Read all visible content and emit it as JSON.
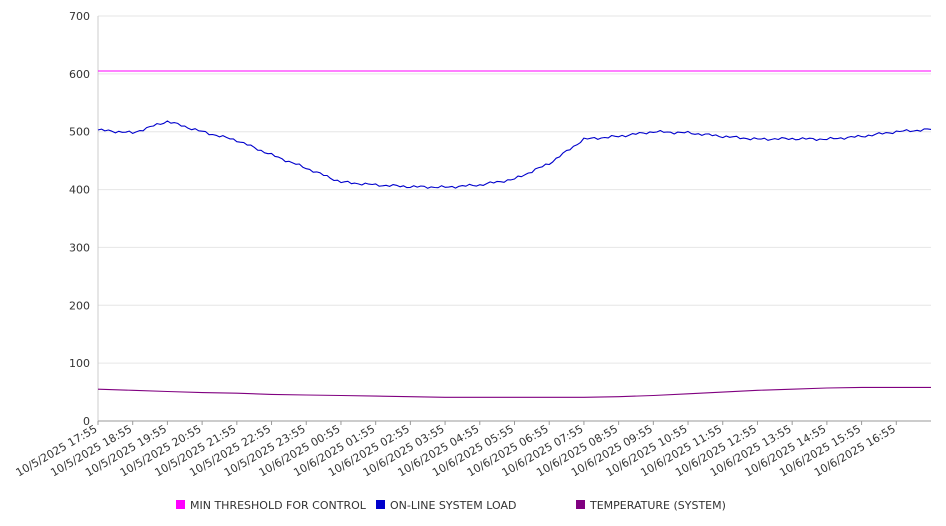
{
  "chart_data": {
    "type": "line",
    "ylim": [
      0,
      700
    ],
    "yticks": [
      0,
      100,
      200,
      300,
      400,
      500,
      600,
      700
    ],
    "x_tick_labels": [
      "10/5/2025 17:55",
      "10/5/2025 18:55",
      "10/5/2025 19:55",
      "10/5/2025 20:55",
      "10/5/2025 21:55",
      "10/5/2025 22:55",
      "10/5/2025 23:55",
      "10/6/2025 00:55",
      "10/6/2025 01:55",
      "10/6/2025 02:55",
      "10/6/2025 03:55",
      "10/6/2025 04:55",
      "10/6/2025 05:55",
      "10/6/2025 06:55",
      "10/6/2025 07:55",
      "10/6/2025 08:55",
      "10/6/2025 09:55",
      "10/6/2025 10:55",
      "10/6/2025 11:55",
      "10/6/2025 12:55",
      "10/6/2025 13:55",
      "10/6/2025 14:55",
      "10/6/2025 15:55",
      "10/6/2025 16:55"
    ],
    "grid": true,
    "legend_position": "bottom",
    "series": [
      {
        "name": "MIN THRESHOLD FOR CONTROL",
        "color": "#ff00ff",
        "values": [
          605,
          605,
          605,
          605,
          605,
          605,
          605,
          605,
          605,
          605,
          605,
          605,
          605,
          605,
          605,
          605,
          605,
          605,
          605,
          605,
          605,
          605,
          605,
          605,
          605
        ]
      },
      {
        "name": "ON-LINE SYSTEM LOAD",
        "color": "#0000cc",
        "values": [
          503,
          498,
          518,
          500,
          485,
          460,
          437,
          413,
          408,
          405,
          404,
          408,
          418,
          445,
          487,
          492,
          500,
          498,
          492,
          487,
          488,
          487,
          492,
          500,
          504
        ]
      },
      {
        "name": "TEMPERATURE (SYSTEM)",
        "color": "#800080",
        "values": [
          55,
          53,
          51,
          49,
          48,
          46,
          45,
          44,
          43,
          42,
          41,
          41,
          41,
          41,
          41,
          42,
          44,
          47,
          50,
          53,
          55,
          57,
          58,
          58,
          58
        ]
      }
    ]
  }
}
